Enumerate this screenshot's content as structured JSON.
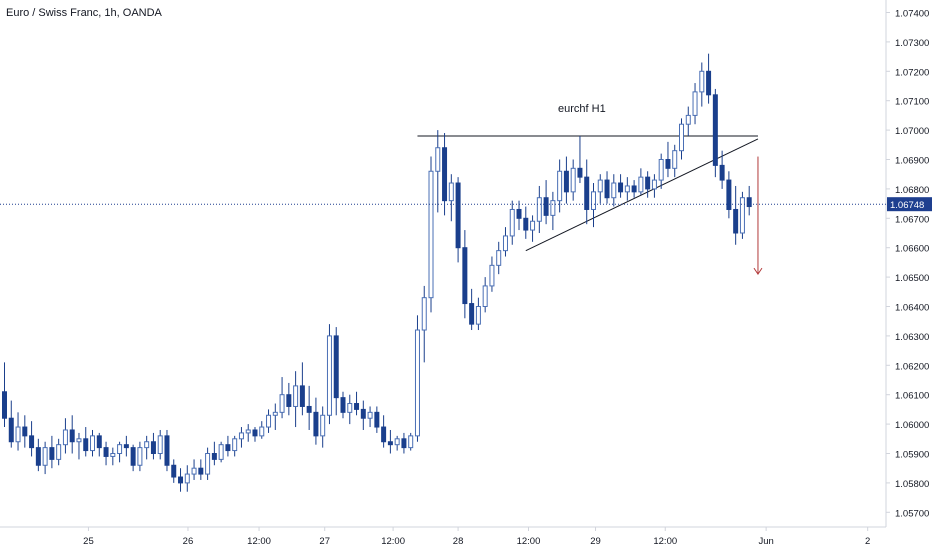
{
  "header": {
    "title": "Euro / Swiss Franc, 1h, OANDA"
  },
  "colors": {
    "up": "#4a6fb5",
    "down": "#1a3f8c",
    "wick": "#1a3f8c",
    "price_line": "#1e3f8f",
    "arrow": "#b23a3a",
    "axis_text": "#131722",
    "axis_line": "#d1d4dc"
  },
  "chart_data": {
    "type": "candlestick",
    "symbol": "Euro / Swiss Franc",
    "interval": "1h",
    "source": "OANDA",
    "ylim": [
      1.0565,
      1.0745
    ],
    "y_ticks": [
      "1.05700",
      "1.05800",
      "1.05900",
      "1.06000",
      "1.06100",
      "1.06200",
      "1.06300",
      "1.06400",
      "1.06500",
      "1.06600",
      "1.06700",
      "1.06800",
      "1.06900",
      "1.07000",
      "1.07100",
      "1.07200",
      "1.07300",
      "1.07400"
    ],
    "x_ticks": [
      "25",
      "26",
      "12:00",
      "27",
      "12:00",
      "28",
      "12:00",
      "29",
      "12:00",
      "Jun",
      "2"
    ],
    "current_price": "1.06748",
    "annotation": "eurchf H1",
    "drawings": {
      "resistance": {
        "y": 1.0698,
        "from_bar": 61,
        "to_bar": 111
      },
      "trendline": {
        "from": [
          77,
          1.0659
        ],
        "to": [
          111,
          1.0697
        ]
      },
      "arrow": {
        "bar": 111,
        "from": 1.0691,
        "to": 1.0651
      }
    },
    "ohlc": [
      [
        1.0611,
        1.0621,
        1.0599,
        1.0602
      ],
      [
        1.0602,
        1.0608,
        1.0592,
        1.0594
      ],
      [
        1.0594,
        1.0604,
        1.0591,
        1.0599
      ],
      [
        1.0599,
        1.0603,
        1.0592,
        1.0596
      ],
      [
        1.0596,
        1.0601,
        1.0589,
        1.0592
      ],
      [
        1.0592,
        1.0595,
        1.0584,
        1.0586
      ],
      [
        1.0586,
        1.0594,
        1.0583,
        1.0592
      ],
      [
        1.0592,
        1.0596,
        1.0585,
        1.0588
      ],
      [
        1.0588,
        1.0595,
        1.0586,
        1.0593
      ],
      [
        1.0593,
        1.0602,
        1.059,
        1.0598
      ],
      [
        1.0598,
        1.0603,
        1.059,
        1.0594
      ],
      [
        1.0594,
        1.0597,
        1.0588,
        1.0595
      ],
      [
        1.0595,
        1.0599,
        1.0589,
        1.0591
      ],
      [
        1.0591,
        1.0598,
        1.0589,
        1.0596
      ],
      [
        1.0596,
        1.0597,
        1.0589,
        1.0592
      ],
      [
        1.0592,
        1.0594,
        1.0586,
        1.0589
      ],
      [
        1.0589,
        1.0592,
        1.0586,
        1.059
      ],
      [
        1.059,
        1.0594,
        1.0587,
        1.0593
      ],
      [
        1.0593,
        1.0596,
        1.0589,
        1.0592
      ],
      [
        1.0592,
        1.0593,
        1.0584,
        1.0586
      ],
      [
        1.0586,
        1.0594,
        1.0584,
        1.0592
      ],
      [
        1.0592,
        1.0596,
        1.0588,
        1.0594
      ],
      [
        1.0594,
        1.0597,
        1.0588,
        1.059
      ],
      [
        1.059,
        1.0598,
        1.0588,
        1.0596
      ],
      [
        1.0596,
        1.0598,
        1.0584,
        1.0586
      ],
      [
        1.0586,
        1.0588,
        1.058,
        1.0582
      ],
      [
        1.0582,
        1.0585,
        1.0577,
        1.058
      ],
      [
        1.058,
        1.0586,
        1.0577,
        1.0583
      ],
      [
        1.0583,
        1.0588,
        1.0581,
        1.0585
      ],
      [
        1.0585,
        1.0588,
        1.0581,
        1.0583
      ],
      [
        1.0583,
        1.0592,
        1.0581,
        1.059
      ],
      [
        1.059,
        1.0594,
        1.0586,
        1.0588
      ],
      [
        1.0588,
        1.0594,
        1.0587,
        1.0593
      ],
      [
        1.0593,
        1.0596,
        1.0589,
        1.0591
      ],
      [
        1.0591,
        1.0596,
        1.0589,
        1.0595
      ],
      [
        1.0595,
        1.0599,
        1.0592,
        1.0597
      ],
      [
        1.0597,
        1.06,
        1.0594,
        1.0598
      ],
      [
        1.0598,
        1.0599,
        1.0594,
        1.0596
      ],
      [
        1.0596,
        1.0601,
        1.0595,
        1.0599
      ],
      [
        1.0599,
        1.0605,
        1.0597,
        1.0603
      ],
      [
        1.0603,
        1.0607,
        1.0598,
        1.0604
      ],
      [
        1.0604,
        1.0616,
        1.0602,
        1.061
      ],
      [
        1.061,
        1.0614,
        1.0603,
        1.0606
      ],
      [
        1.0606,
        1.0618,
        1.0599,
        1.0613
      ],
      [
        1.0613,
        1.0621,
        1.0603,
        1.0606
      ],
      [
        1.0606,
        1.0613,
        1.0598,
        1.0604
      ],
      [
        1.0604,
        1.0609,
        1.0593,
        1.0596
      ],
      [
        1.0596,
        1.0606,
        1.0592,
        1.0603
      ],
      [
        1.0603,
        1.0634,
        1.06,
        1.063
      ],
      [
        1.063,
        1.0633,
        1.0603,
        1.0609
      ],
      [
        1.0609,
        1.0611,
        1.0602,
        1.0604
      ],
      [
        1.0604,
        1.061,
        1.06,
        1.0607
      ],
      [
        1.0607,
        1.0611,
        1.0603,
        1.0605
      ],
      [
        1.0605,
        1.0608,
        1.0598,
        1.0602
      ],
      [
        1.0602,
        1.0606,
        1.0599,
        1.0604
      ],
      [
        1.0604,
        1.0606,
        1.0597,
        1.0599
      ],
      [
        1.0599,
        1.0603,
        1.0592,
        1.0594
      ],
      [
        1.0594,
        1.0598,
        1.059,
        1.0593
      ],
      [
        1.0593,
        1.0596,
        1.0591,
        1.0595
      ],
      [
        1.0595,
        1.0597,
        1.059,
        1.0592
      ],
      [
        1.0592,
        1.0597,
        1.0591,
        1.0596
      ],
      [
        1.0596,
        1.0637,
        1.0594,
        1.0632
      ],
      [
        1.0632,
        1.0647,
        1.0621,
        1.0643
      ],
      [
        1.0643,
        1.0691,
        1.0638,
        1.0686
      ],
      [
        1.0686,
        1.07,
        1.0672,
        1.0694
      ],
      [
        1.0694,
        1.0699,
        1.0671,
        1.0676
      ],
      [
        1.0676,
        1.0685,
        1.0669,
        1.0682
      ],
      [
        1.0682,
        1.0684,
        1.0655,
        1.066
      ],
      [
        1.066,
        1.0666,
        1.0636,
        1.0641
      ],
      [
        1.0641,
        1.0646,
        1.0632,
        1.0634
      ],
      [
        1.0634,
        1.0643,
        1.0632,
        1.064
      ],
      [
        1.064,
        1.065,
        1.0638,
        1.0647
      ],
      [
        1.0647,
        1.0657,
        1.0645,
        1.0654
      ],
      [
        1.0654,
        1.0662,
        1.0651,
        1.0659
      ],
      [
        1.0659,
        1.0667,
        1.0657,
        1.0664
      ],
      [
        1.0664,
        1.0676,
        1.0661,
        1.0673
      ],
      [
        1.0673,
        1.0676,
        1.0666,
        1.067
      ],
      [
        1.067,
        1.0674,
        1.0663,
        1.0666
      ],
      [
        1.0666,
        1.0671,
        1.0662,
        1.0669
      ],
      [
        1.0669,
        1.0681,
        1.0665,
        1.0677
      ],
      [
        1.0677,
        1.0683,
        1.0668,
        1.0671
      ],
      [
        1.0671,
        1.0679,
        1.0666,
        1.0676
      ],
      [
        1.0676,
        1.069,
        1.0672,
        1.0686
      ],
      [
        1.0686,
        1.0691,
        1.0675,
        1.0679
      ],
      [
        1.0679,
        1.069,
        1.0676,
        1.0687
      ],
      [
        1.0687,
        1.0698,
        1.0682,
        1.0684
      ],
      [
        1.0684,
        1.069,
        1.0668,
        1.0673
      ],
      [
        1.0673,
        1.0682,
        1.0667,
        1.0679
      ],
      [
        1.0679,
        1.0685,
        1.0675,
        1.0683
      ],
      [
        1.0683,
        1.0686,
        1.0675,
        1.0677
      ],
      [
        1.0677,
        1.0685,
        1.0674,
        1.0682
      ],
      [
        1.0682,
        1.0685,
        1.0677,
        1.0679
      ],
      [
        1.0679,
        1.0684,
        1.0676,
        1.0681
      ],
      [
        1.0681,
        1.0683,
        1.0677,
        1.0679
      ],
      [
        1.0679,
        1.0687,
        1.0678,
        1.0684
      ],
      [
        1.0684,
        1.0686,
        1.0677,
        1.068
      ],
      [
        1.068,
        1.0685,
        1.0677,
        1.0683
      ],
      [
        1.0683,
        1.0692,
        1.068,
        1.069
      ],
      [
        1.069,
        1.0696,
        1.0684,
        1.0687
      ],
      [
        1.0687,
        1.0695,
        1.0684,
        1.0693
      ],
      [
        1.0693,
        1.0704,
        1.069,
        1.0702
      ],
      [
        1.0702,
        1.0708,
        1.0698,
        1.0705
      ],
      [
        1.0705,
        1.0716,
        1.0702,
        1.0713
      ],
      [
        1.0713,
        1.0723,
        1.0708,
        1.072
      ],
      [
        1.072,
        1.0726,
        1.0709,
        1.0712
      ],
      [
        1.0712,
        1.0714,
        1.0684,
        1.0688
      ],
      [
        1.0688,
        1.0693,
        1.068,
        1.0683
      ],
      [
        1.0683,
        1.0686,
        1.067,
        1.0673
      ],
      [
        1.0673,
        1.0681,
        1.0661,
        1.0665
      ],
      [
        1.0665,
        1.0679,
        1.0663,
        1.0677
      ],
      [
        1.0677,
        1.0681,
        1.0671,
        1.0674
      ]
    ]
  },
  "price_axis": {
    "current_label": "1.06748"
  },
  "annotation_text": "eurchf H1"
}
